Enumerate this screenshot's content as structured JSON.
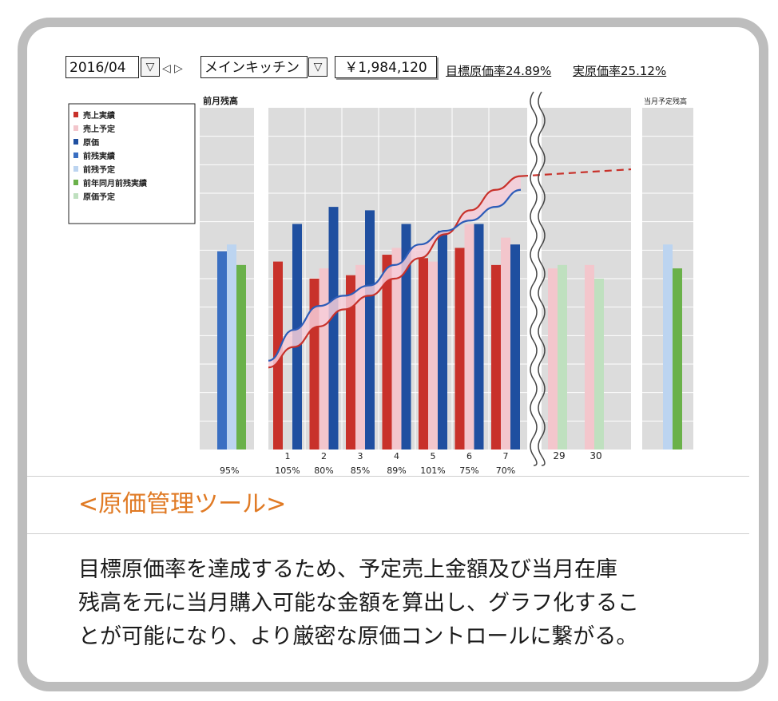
{
  "toolbar": {
    "month": "2016/04",
    "location": "メインキッチン",
    "amount": "￥1,984,120",
    "target_rate": "目標原価率24.89%",
    "actual_rate": "実原価率25.12%"
  },
  "panels": {
    "prev_balance_label": "前月残高",
    "month_end_label": "当月予定残高"
  },
  "legend": [
    {
      "name": "売上実績",
      "color": "#c8312a"
    },
    {
      "name": "売上予定",
      "color": "#f3c6cc"
    },
    {
      "name": "原価",
      "color": "#1f4fa0"
    },
    {
      "name": "前残実績",
      "color": "#3a6fc2"
    },
    {
      "name": "前残予定",
      "color": "#bcd4f0"
    },
    {
      "name": "前年同月前残実績",
      "color": "#6ab14a"
    },
    {
      "name": "原価予定",
      "color": "#bfe0bf"
    }
  ],
  "chart_data": {
    "type": "bar",
    "prev_balance": {
      "label": "95%",
      "values": {
        "前残実績": 0.58,
        "前残予定": 0.6,
        "前年同月前残実績": 0.54
      }
    },
    "days": [
      {
        "day": "1",
        "pct": "105%",
        "sales": 0.55,
        "sales_plan": null,
        "cost": 0.66
      },
      {
        "day": "2",
        "pct": "80%",
        "sales": 0.5,
        "sales_plan": 0.53,
        "cost": 0.71
      },
      {
        "day": "3",
        "pct": "85%",
        "sales": 0.51,
        "sales_plan": 0.54,
        "cost": 0.7
      },
      {
        "day": "4",
        "pct": "89%",
        "sales": 0.57,
        "sales_plan": 0.59,
        "cost": 0.66
      },
      {
        "day": "5",
        "pct": "101%",
        "sales": 0.56,
        "sales_plan": 0.55,
        "cost": 0.64
      },
      {
        "day": "6",
        "pct": "75%",
        "sales": 0.59,
        "sales_plan": 0.66,
        "cost": 0.66
      },
      {
        "day": "7",
        "pct": "70%",
        "sales": 0.54,
        "sales_plan": 0.62,
        "cost": 0.6
      }
    ],
    "plan_days": [
      {
        "day": "29",
        "sales_plan": 0.53,
        "cost_plan": 0.54
      },
      {
        "day": "30",
        "sales_plan": 0.54,
        "cost_plan": 0.5
      }
    ],
    "month_end": {
      "values": {
        "前残予定": 0.6,
        "前年同月前残実績": 0.53
      }
    },
    "line_sales": [
      0.24,
      0.3,
      0.36,
      0.41,
      0.45,
      0.5,
      0.56,
      0.63,
      0.7,
      0.76,
      0.8
    ],
    "line_cost": [
      0.26,
      0.35,
      0.42,
      0.45,
      0.48,
      0.54,
      0.6,
      0.64,
      0.67,
      0.71,
      0.76
    ],
    "line_sales_plan_end": 0.82,
    "ylim": [
      0,
      1
    ]
  },
  "caption": {
    "title": "<原価管理ツール>",
    "lines": [
      "目標原価率を達成するため、予定売上金額及び当月在庫",
      "残高を元に当月購入可能な金額を算出し、グラフ化するこ",
      "とが可能になり、より厳密な原価コントロールに繋がる。"
    ]
  }
}
